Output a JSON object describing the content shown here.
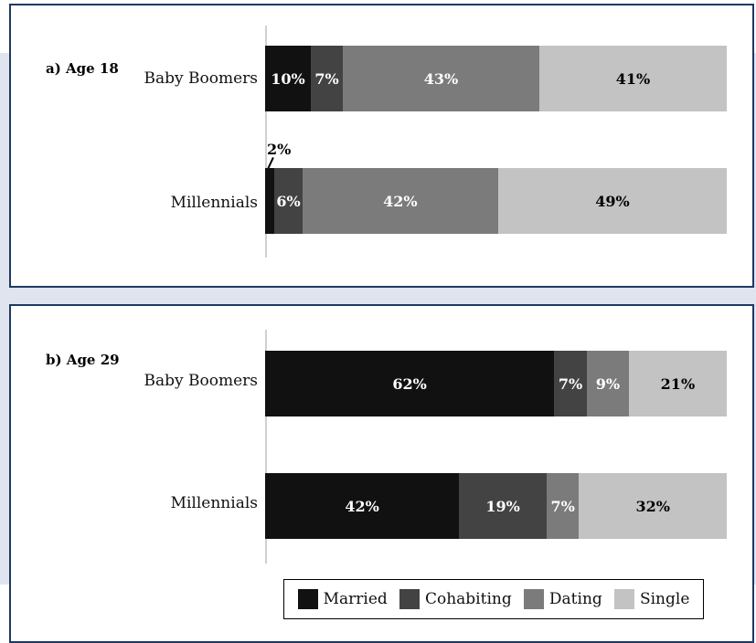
{
  "colors": {
    "Married": "#111111",
    "Cohabiting": "#434343",
    "Dating": "#7b7b7b",
    "Single": "#c3c3c3",
    "frame": "#1f3864"
  },
  "chart_data": [
    {
      "type": "bar",
      "orientation": "horizontal",
      "stacked": true,
      "title": "a) Age 18",
      "categories": [
        "Baby Boomers",
        "Millennials"
      ],
      "series": [
        {
          "name": "Married",
          "values": [
            10,
            2
          ]
        },
        {
          "name": "Cohabiting",
          "values": [
            7,
            6
          ]
        },
        {
          "name": "Dating",
          "values": [
            43,
            42
          ]
        },
        {
          "name": "Single",
          "values": [
            41,
            49
          ]
        }
      ],
      "labels": [
        [
          "10%",
          "7%",
          "43%",
          "41%"
        ],
        [
          "2%",
          "6%",
          "42%",
          "49%"
        ]
      ],
      "legend": "bottom"
    },
    {
      "type": "bar",
      "orientation": "horizontal",
      "stacked": true,
      "title": "b) Age 29",
      "categories": [
        "Baby Boomers",
        "Millennials"
      ],
      "series": [
        {
          "name": "Married",
          "values": [
            62,
            42
          ]
        },
        {
          "name": "Cohabiting",
          "values": [
            7,
            19
          ]
        },
        {
          "name": "Dating",
          "values": [
            9,
            7
          ]
        },
        {
          "name": "Single",
          "values": [
            21,
            32
          ]
        }
      ],
      "labels": [
        [
          "62%",
          "7%",
          "9%",
          "21%"
        ],
        [
          "42%",
          "19%",
          "7%",
          "32%"
        ]
      ],
      "legend": "bottom"
    }
  ],
  "legend": {
    "items": [
      "Married",
      "Cohabiting",
      "Dating",
      "Single"
    ]
  }
}
